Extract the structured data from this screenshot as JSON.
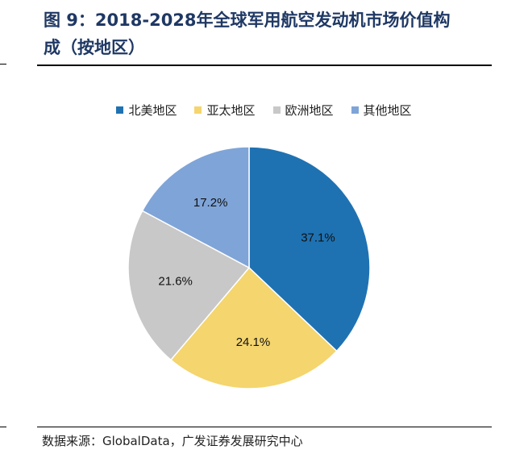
{
  "title": {
    "line1": "图 9：2018-2028年全球军用航空发动机市场价值构",
    "line2": "成（按地区）"
  },
  "source": "数据来源：GlobalData，广发证券发展研究中心",
  "chart_data": {
    "type": "pie",
    "title": "",
    "legend_position": "top",
    "slices": [
      {
        "label": "北美地区",
        "value": 37.1,
        "value_label": "37.1%",
        "color": "#1f72b2"
      },
      {
        "label": "亚太地区",
        "value": 24.1,
        "value_label": "24.1%",
        "color": "#f4d56e"
      },
      {
        "label": "欧洲地区",
        "value": 21.6,
        "value_label": "21.6%",
        "color": "#c8c8c8"
      },
      {
        "label": "其他地区",
        "value": 17.2,
        "value_label": "17.2%",
        "color": "#7fa4d8"
      }
    ]
  }
}
